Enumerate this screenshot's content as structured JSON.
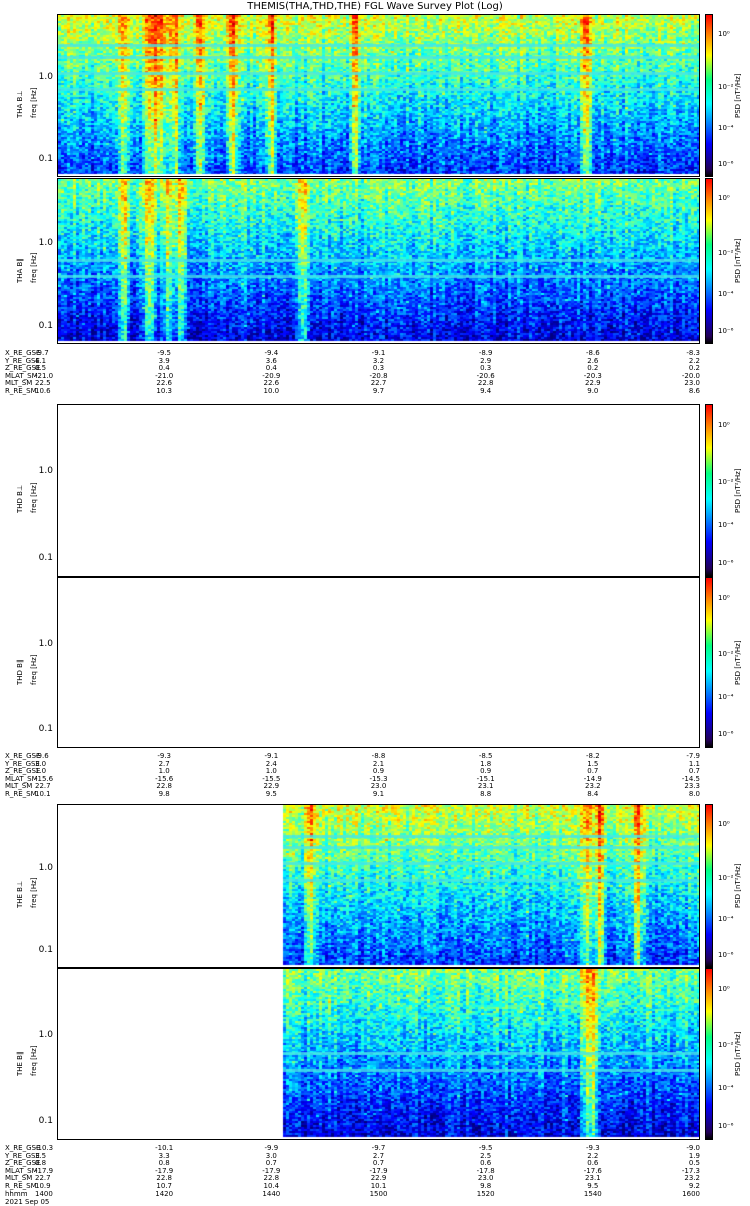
{
  "title": "THEMIS(THA,THD,THE) FGL Wave Survey Plot (Log)",
  "colorbar": {
    "label": "PSD [nT²/Hz]",
    "ticks": [
      "10⁰",
      "10⁻²",
      "10⁻⁴",
      "10⁻⁶"
    ]
  },
  "freq_ticks": [
    "1.0",
    "0.1"
  ],
  "ephemeris_row_labels": [
    "X_RE_GSE",
    "Y_RE_GSE",
    "Z_RE_GSE",
    "MLAT_SM",
    "MLT_SM",
    "R_RE_SM"
  ],
  "time_row_labels": [
    "hhmm",
    "2021 Sep 05"
  ],
  "time_ticks": [
    "1400",
    "1420",
    "1440",
    "1500",
    "1520",
    "1540",
    "1600"
  ],
  "chart_data": [
    {
      "type": "heatmap",
      "probe": "THA",
      "panels": [
        {
          "ylabel": "THA B⊥",
          "yunit": "freq [Hz]",
          "ylim": [
            0.06,
            6.0
          ],
          "yscale": "log",
          "clim_log10": [
            -7,
            1
          ],
          "has_data": true,
          "data_start_fraction": 0.0,
          "bright_bursts_fraction": [
            0.1,
            0.14,
            0.15,
            0.16,
            0.18,
            0.22,
            0.27,
            0.33,
            0.46,
            0.82
          ]
        },
        {
          "ylabel": "THA B∥",
          "yunit": "freq [Hz]",
          "ylim": [
            0.06,
            6.0
          ],
          "yscale": "log",
          "clim_log10": [
            -7,
            1
          ],
          "has_data": true,
          "data_start_fraction": 0.0,
          "bright_bursts_fraction": [
            0.1,
            0.14,
            0.17,
            0.19,
            0.38
          ]
        }
      ],
      "ephemeris": {
        "X_RE_GSE": [
          "-9.7",
          "-9.5",
          "-9.4",
          "-9.1",
          "-8.9",
          "-8.6",
          "-8.3"
        ],
        "Y_RE_GSE": [
          "4.1",
          "3.9",
          "3.6",
          "3.2",
          "2.9",
          "2.6",
          "2.2"
        ],
        "Z_RE_GSE": [
          "0.5",
          "0.4",
          "0.4",
          "0.3",
          "0.3",
          "0.2",
          "0.2"
        ],
        "MLAT_SM": [
          "-21.0",
          "-21.0",
          "-20.9",
          "-20.8",
          "-20.6",
          "-20.3",
          "-20.0"
        ],
        "MLT_SM": [
          "22.5",
          "22.6",
          "22.6",
          "22.7",
          "22.8",
          "22.9",
          "23.0"
        ],
        "R_RE_SM": [
          "10.6",
          "10.3",
          "10.0",
          "9.7",
          "9.4",
          "9.0",
          "8.6"
        ]
      }
    },
    {
      "type": "heatmap",
      "probe": "THD",
      "panels": [
        {
          "ylabel": "THD B⊥",
          "yunit": "freq [Hz]",
          "ylim": [
            0.06,
            6.0
          ],
          "yscale": "log",
          "clim_log10": [
            -7,
            1
          ],
          "has_data": false
        },
        {
          "ylabel": "THD B∥",
          "yunit": "freq [Hz]",
          "ylim": [
            0.06,
            6.0
          ],
          "yscale": "log",
          "clim_log10": [
            -7,
            1
          ],
          "has_data": false
        }
      ],
      "ephemeris": {
        "X_RE_GSE": [
          "-9.6",
          "-9.3",
          "-9.1",
          "-8.8",
          "-8.5",
          "-8.2",
          "-7.9"
        ],
        "Y_RE_GSE": [
          "3.0",
          "2.7",
          "2.4",
          "2.1",
          "1.8",
          "1.5",
          "1.1"
        ],
        "Z_RE_GSE": [
          "1.0",
          "1.0",
          "1.0",
          "0.9",
          "0.9",
          "0.7",
          "0.7"
        ],
        "MLAT_SM": [
          "-15.6",
          "-15.6",
          "-15.5",
          "-15.3",
          "-15.1",
          "-14.9",
          "-14.5"
        ],
        "MLT_SM": [
          "22.7",
          "22.8",
          "22.9",
          "23.0",
          "23.1",
          "23.2",
          "23.3"
        ],
        "R_RE_SM": [
          "10.1",
          "9.8",
          "9.5",
          "9.1",
          "8.8",
          "8.4",
          "8.0"
        ]
      }
    },
    {
      "type": "heatmap",
      "probe": "THE",
      "panels": [
        {
          "ylabel": "THE B⊥",
          "yunit": "freq [Hz]",
          "ylim": [
            0.06,
            6.0
          ],
          "yscale": "log",
          "clim_log10": [
            -7,
            1
          ],
          "has_data": true,
          "data_start_fraction": 0.35,
          "bright_bursts_fraction": [
            0.39,
            0.82,
            0.84,
            0.9
          ]
        },
        {
          "ylabel": "THE B∥",
          "yunit": "freq [Hz]",
          "ylim": [
            0.06,
            6.0
          ],
          "yscale": "log",
          "clim_log10": [
            -7,
            1
          ],
          "has_data": true,
          "data_start_fraction": 0.35,
          "bright_bursts_fraction": [
            0.82,
            0.83
          ]
        }
      ],
      "ephemeris": {
        "X_RE_GSE": [
          "-10.3",
          "-10.1",
          "-9.9",
          "-9.7",
          "-9.5",
          "-9.3",
          "-9.0"
        ],
        "Y_RE_GSE": [
          "3.5",
          "3.3",
          "3.0",
          "2.7",
          "2.5",
          "2.2",
          "1.9"
        ],
        "Z_RE_GSE": [
          "0.8",
          "0.8",
          "0.7",
          "0.7",
          "0.6",
          "0.6",
          "0.5"
        ],
        "MLAT_SM": [
          "-17.9",
          "-17.9",
          "-17.9",
          "-17.9",
          "-17.8",
          "-17.6",
          "-17.3"
        ],
        "MLT_SM": [
          "22.7",
          "22.8",
          "22.8",
          "22.9",
          "23.0",
          "23.1",
          "23.2"
        ],
        "R_RE_SM": [
          "10.9",
          "10.7",
          "10.4",
          "10.1",
          "9.8",
          "9.5",
          "9.2"
        ]
      }
    }
  ]
}
